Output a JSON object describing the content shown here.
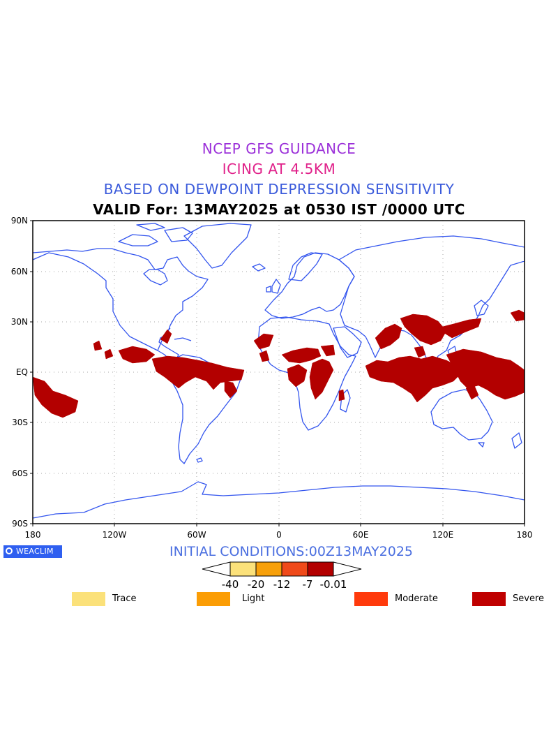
{
  "titles": {
    "line1": "NCEP GFS GUIDANCE",
    "line2": "ICING AT 4.5KM",
    "line3": "BASED ON DEWPOINT DEPRESSION SENSITIVITY",
    "line4": "VALID For: 13MAY2025 at 0530 IST /0000 UTC"
  },
  "map": {
    "projection": "lat-lon",
    "lat_range": [
      -90,
      90
    ],
    "lon_range": [
      -180,
      180
    ],
    "lat_ticks": [
      "90N",
      "60N",
      "30N",
      "EQ",
      "30S",
      "60S",
      "90S"
    ],
    "lon_ticks": [
      "180",
      "120W",
      "60W",
      "0",
      "60E",
      "120E",
      "180"
    ],
    "grid": "dotted",
    "coastline_color": "#3355ee",
    "icing_color": "#b30000"
  },
  "footer": {
    "logo_text": "WEACLIM",
    "initial_conditions": "INITIAL CONDITIONS:00Z13MAY2025"
  },
  "colorbar": {
    "labels": [
      "-40",
      "-20",
      "-12",
      "-7",
      "-0.01"
    ],
    "colors": [
      "#fbe17a",
      "#f7a00a",
      "#f04a1a",
      "#b30000"
    ]
  },
  "legend": [
    {
      "label": "Trace",
      "color": "#fbe17a"
    },
    {
      "label": "Light",
      "color": "#fb9d05"
    },
    {
      "label": "Moderate",
      "color": "#ff3a0c"
    },
    {
      "label": "Severe",
      "color": "#bf0000"
    }
  ]
}
